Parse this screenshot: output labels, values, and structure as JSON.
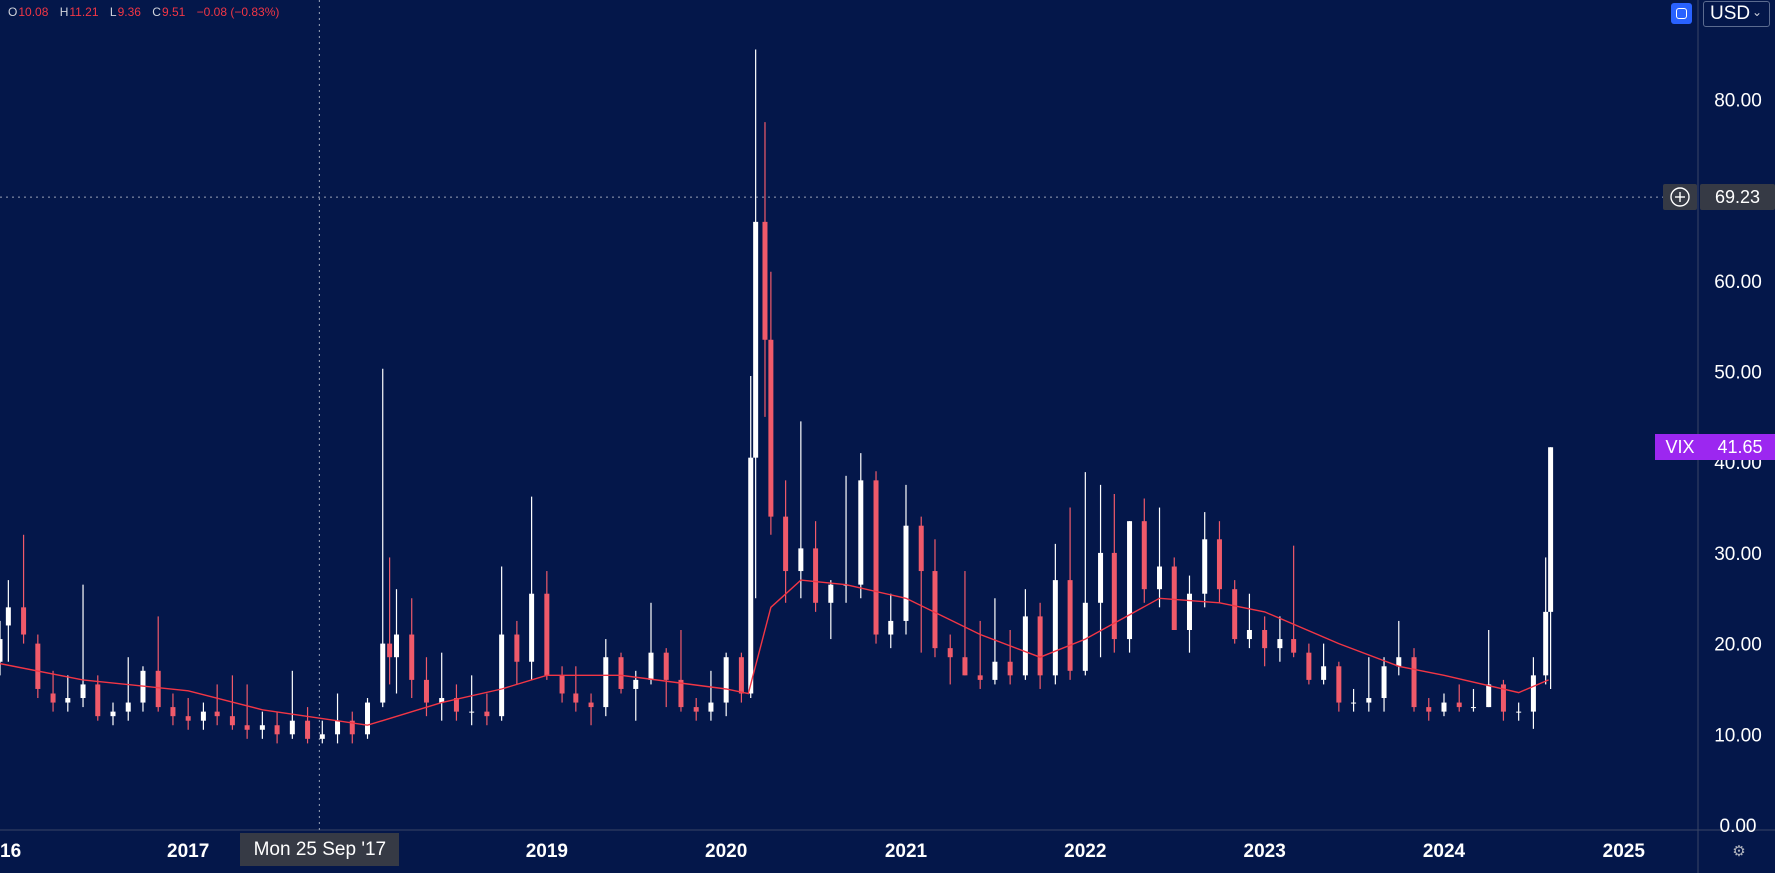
{
  "ohlc": {
    "o_label": "O",
    "o": "10.08",
    "h_label": "H",
    "h": "11.21",
    "l_label": "L",
    "l": "9.36",
    "c_label": "C",
    "c": "9.51",
    "change": "−0.08 (−0.83%)"
  },
  "toolbar": {
    "currency": "USD",
    "currency_chevron": "⌄"
  },
  "crosshair": {
    "price": "69.23",
    "date": "Mon 25 Sep '17"
  },
  "symbol_tag": {
    "name": "VIX",
    "price": "41.65"
  },
  "colors": {
    "background": "#04174a",
    "up": "#ffffff",
    "down": "#f05a6a",
    "ma_line": "#f23645",
    "axis_text": "#ffffff",
    "symbol_tag": "#9c27f0",
    "crosshair_tag": "#363a45",
    "accent_button": "#2962ff"
  },
  "icons": {
    "sync": "sync-square-icon",
    "add": "plus-circle-icon",
    "settings": "gear-icon"
  },
  "chart_data": {
    "type": "candlestick",
    "y_axis": {
      "side": "right",
      "range": [
        0,
        86
      ],
      "ticks": [
        0,
        10,
        20,
        30,
        40,
        50,
        60,
        80
      ],
      "tick_labels": [
        "0.00",
        "10.00",
        "20.00",
        "30.00",
        "40.00",
        "50.00",
        "60.00",
        "80.00"
      ]
    },
    "x_axis": {
      "range": [
        "2015-12-15",
        "2025-06-01"
      ],
      "ticks": [
        "2016-01-01",
        "2017-01-01",
        "2019-01-01",
        "2020-01-01",
        "2021-01-01",
        "2022-01-01",
        "2023-01-01",
        "2024-01-01",
        "2025-01-01"
      ],
      "tick_labels": [
        "16",
        "2017",
        "2019",
        "2020",
        "2021",
        "2022",
        "2023",
        "2024",
        "2025"
      ]
    },
    "crosshair": {
      "x": "2017-09-25",
      "y": 69.23
    },
    "last_value": 41.65,
    "moving_average": {
      "x": [
        "2015-12-15",
        "2016-06-01",
        "2017-01-01",
        "2017-06-01",
        "2018-01-01",
        "2018-06-01",
        "2018-10-01",
        "2019-01-01",
        "2019-06-01",
        "2020-01-01",
        "2020-02-15",
        "2020-04-01",
        "2020-06-01",
        "2020-09-01",
        "2021-01-01",
        "2021-06-01",
        "2021-10-01",
        "2022-01-01",
        "2022-06-01",
        "2022-10-01",
        "2023-01-01",
        "2023-06-01",
        "2023-10-01",
        "2024-01-01",
        "2024-06-01",
        "2024-08-01"
      ],
      "y": [
        17.8,
        16.0,
        14.8,
        12.7,
        11.0,
        13.5,
        15.0,
        16.5,
        16.5,
        15.0,
        14.5,
        24.0,
        27.0,
        26.5,
        25.0,
        21.0,
        18.5,
        20.5,
        25.0,
        24.5,
        23.5,
        20.0,
        17.5,
        16.5,
        14.6,
        16.0
      ]
    },
    "candles": [
      [
        "2015-12-15",
        18.0,
        22.5,
        16.5,
        20.5
      ],
      [
        "2016-01-01",
        22.0,
        27.0,
        18.0,
        24.0
      ],
      [
        "2016-02-01",
        24.0,
        32.0,
        20.0,
        21.0
      ],
      [
        "2016-03-01",
        20.0,
        21.0,
        14.0,
        15.0
      ],
      [
        "2016-04-01",
        14.5,
        17.0,
        12.5,
        13.5
      ],
      [
        "2016-05-01",
        13.5,
        16.5,
        12.5,
        14.0
      ],
      [
        "2016-06-01",
        14.0,
        26.5,
        13.0,
        15.5
      ],
      [
        "2016-07-01",
        15.5,
        16.5,
        11.5,
        12.0
      ],
      [
        "2016-08-01",
        12.0,
        13.5,
        11.0,
        12.5
      ],
      [
        "2016-09-01",
        12.5,
        18.5,
        11.5,
        13.5
      ],
      [
        "2016-10-01",
        13.5,
        17.5,
        12.5,
        17.0
      ],
      [
        "2016-11-01",
        17.0,
        23.0,
        12.5,
        13.0
      ],
      [
        "2016-12-01",
        13.0,
        14.5,
        11.0,
        12.0
      ],
      [
        "2017-01-01",
        12.0,
        14.0,
        10.5,
        11.5
      ],
      [
        "2017-02-01",
        11.5,
        13.5,
        10.5,
        12.5
      ],
      [
        "2017-03-01",
        12.5,
        15.5,
        11.0,
        12.0
      ],
      [
        "2017-04-01",
        12.0,
        16.5,
        10.5,
        11.0
      ],
      [
        "2017-05-01",
        11.0,
        15.5,
        9.5,
        10.5
      ],
      [
        "2017-06-01",
        10.5,
        12.5,
        9.5,
        11.0
      ],
      [
        "2017-07-01",
        11.0,
        12.5,
        9.0,
        10.0
      ],
      [
        "2017-08-01",
        10.0,
        17.0,
        9.5,
        11.5
      ],
      [
        "2017-09-01",
        11.5,
        13.0,
        9.0,
        9.5
      ],
      [
        "2017-10-01",
        9.5,
        11.5,
        9.0,
        10.0
      ],
      [
        "2017-11-01",
        10.0,
        14.5,
        9.0,
        11.5
      ],
      [
        "2017-12-01",
        11.5,
        12.5,
        9.0,
        10.0
      ],
      [
        "2018-01-01",
        10.0,
        14.0,
        9.5,
        13.5
      ],
      [
        "2018-02-01",
        13.5,
        50.3,
        13.0,
        20.0
      ],
      [
        "2018-02-15",
        20.0,
        29.5,
        15.5,
        18.5
      ],
      [
        "2018-03-01",
        18.5,
        26.0,
        14.5,
        21.0
      ],
      [
        "2018-04-01",
        21.0,
        25.0,
        14.0,
        16.0
      ],
      [
        "2018-05-01",
        16.0,
        18.5,
        12.0,
        13.5
      ],
      [
        "2018-06-01",
        13.5,
        19.0,
        11.5,
        14.0
      ],
      [
        "2018-07-01",
        14.0,
        15.5,
        11.5,
        12.5
      ],
      [
        "2018-08-01",
        12.5,
        16.5,
        11.0,
        12.5
      ],
      [
        "2018-09-01",
        12.5,
        14.5,
        11.0,
        12.0
      ],
      [
        "2018-10-01",
        12.0,
        28.5,
        11.5,
        21.0
      ],
      [
        "2018-11-01",
        21.0,
        22.5,
        15.5,
        18.0
      ],
      [
        "2018-12-01",
        18.0,
        36.2,
        16.0,
        25.5
      ],
      [
        "2019-01-01",
        25.5,
        28.0,
        16.0,
        16.5
      ],
      [
        "2019-02-01",
        16.5,
        17.5,
        13.5,
        14.5
      ],
      [
        "2019-03-01",
        14.5,
        17.5,
        12.5,
        13.5
      ],
      [
        "2019-04-01",
        13.5,
        14.5,
        11.0,
        13.0
      ],
      [
        "2019-05-01",
        13.0,
        20.5,
        12.0,
        18.5
      ],
      [
        "2019-06-01",
        18.5,
        19.0,
        14.5,
        15.0
      ],
      [
        "2019-07-01",
        15.0,
        17.0,
        11.5,
        16.0
      ],
      [
        "2019-08-01",
        16.0,
        24.5,
        15.5,
        19.0
      ],
      [
        "2019-09-01",
        19.0,
        19.5,
        13.0,
        16.0
      ],
      [
        "2019-10-01",
        16.0,
        21.5,
        12.5,
        13.0
      ],
      [
        "2019-11-01",
        13.0,
        14.0,
        11.5,
        12.5
      ],
      [
        "2019-12-01",
        12.5,
        17.0,
        11.5,
        13.5
      ],
      [
        "2020-01-01",
        13.5,
        19.0,
        12.0,
        18.5
      ],
      [
        "2020-02-01",
        18.5,
        19.0,
        13.5,
        14.5
      ],
      [
        "2020-02-20",
        14.5,
        49.5,
        14.0,
        40.5
      ],
      [
        "2020-03-01",
        40.5,
        85.5,
        25.0,
        66.5
      ],
      [
        "2020-03-20",
        66.5,
        77.5,
        45.0,
        53.5
      ],
      [
        "2020-04-01",
        53.5,
        61.0,
        32.0,
        34.0
      ],
      [
        "2020-05-01",
        34.0,
        38.0,
        24.5,
        28.0
      ],
      [
        "2020-06-01",
        28.0,
        44.5,
        25.0,
        30.5
      ],
      [
        "2020-07-01",
        30.5,
        33.5,
        23.5,
        24.5
      ],
      [
        "2020-08-01",
        24.5,
        27.0,
        20.5,
        26.5
      ],
      [
        "2020-09-01",
        26.5,
        38.5,
        24.5,
        26.5
      ],
      [
        "2020-10-01",
        26.5,
        41.0,
        25.0,
        38.0
      ],
      [
        "2020-11-01",
        38.0,
        39.0,
        20.0,
        21.0
      ],
      [
        "2020-12-01",
        21.0,
        25.5,
        19.5,
        22.5
      ],
      [
        "2021-01-01",
        22.5,
        37.5,
        21.0,
        33.0
      ],
      [
        "2021-02-01",
        33.0,
        34.0,
        19.0,
        28.0
      ],
      [
        "2021-03-01",
        28.0,
        31.5,
        18.5,
        19.5
      ],
      [
        "2021-04-01",
        19.5,
        21.0,
        15.5,
        18.5
      ],
      [
        "2021-05-01",
        18.5,
        28.0,
        16.5,
        16.5
      ],
      [
        "2021-06-01",
        16.5,
        22.5,
        15.0,
        16.0
      ],
      [
        "2021-07-01",
        16.0,
        25.0,
        15.5,
        18.0
      ],
      [
        "2021-08-01",
        18.0,
        21.5,
        15.5,
        16.5
      ],
      [
        "2021-09-01",
        16.5,
        26.0,
        16.0,
        23.0
      ],
      [
        "2021-10-01",
        23.0,
        24.5,
        15.0,
        16.5
      ],
      [
        "2021-11-01",
        16.5,
        31.0,
        15.5,
        27.0
      ],
      [
        "2021-12-01",
        27.0,
        35.0,
        16.0,
        17.0
      ],
      [
        "2022-01-01",
        17.0,
        38.9,
        16.5,
        24.5
      ],
      [
        "2022-02-01",
        24.5,
        37.5,
        18.5,
        30.0
      ],
      [
        "2022-03-01",
        30.0,
        36.5,
        19.0,
        20.5
      ],
      [
        "2022-04-01",
        20.5,
        33.5,
        19.0,
        33.5
      ],
      [
        "2022-05-01",
        33.5,
        36.0,
        24.5,
        26.0
      ],
      [
        "2022-06-01",
        26.0,
        35.0,
        24.0,
        28.5
      ],
      [
        "2022-07-01",
        28.5,
        29.5,
        21.5,
        21.5
      ],
      [
        "2022-08-01",
        21.5,
        27.5,
        19.0,
        25.5
      ],
      [
        "2022-09-01",
        25.5,
        34.5,
        24.0,
        31.5
      ],
      [
        "2022-10-01",
        31.5,
        33.5,
        24.5,
        26.0
      ],
      [
        "2022-11-01",
        26.0,
        27.0,
        20.0,
        20.5
      ],
      [
        "2022-12-01",
        20.5,
        25.5,
        19.5,
        21.5
      ],
      [
        "2023-01-01",
        21.5,
        23.0,
        17.5,
        19.5
      ],
      [
        "2023-02-01",
        19.5,
        23.0,
        18.0,
        20.5
      ],
      [
        "2023-03-01",
        20.5,
        30.8,
        18.5,
        19.0
      ],
      [
        "2023-04-01",
        19.0,
        20.0,
        15.5,
        16.0
      ],
      [
        "2023-05-01",
        16.0,
        20.0,
        15.5,
        17.5
      ],
      [
        "2023-06-01",
        17.5,
        18.0,
        12.5,
        13.5
      ],
      [
        "2023-07-01",
        13.5,
        15.0,
        12.5,
        13.5
      ],
      [
        "2023-08-01",
        13.5,
        18.5,
        12.5,
        14.0
      ],
      [
        "2023-09-01",
        14.0,
        18.5,
        12.5,
        17.5
      ],
      [
        "2023-10-01",
        17.5,
        22.5,
        16.5,
        18.5
      ],
      [
        "2023-11-01",
        18.5,
        19.5,
        12.5,
        13.0
      ],
      [
        "2023-12-01",
        13.0,
        14.0,
        11.5,
        12.5
      ],
      [
        "2024-01-01",
        12.5,
        14.5,
        12.0,
        13.5
      ],
      [
        "2024-02-01",
        13.5,
        15.5,
        12.5,
        13.0
      ],
      [
        "2024-03-01",
        13.0,
        15.0,
        12.5,
        13.0
      ],
      [
        "2024-04-01",
        13.0,
        21.5,
        13.0,
        15.5
      ],
      [
        "2024-05-01",
        15.5,
        16.0,
        11.5,
        12.5
      ],
      [
        "2024-06-01",
        12.5,
        13.5,
        11.5,
        12.5
      ],
      [
        "2024-07-01",
        12.5,
        18.5,
        10.6,
        16.5
      ],
      [
        "2024-07-26",
        16.5,
        29.5,
        15.5,
        23.5
      ],
      [
        "2024-08-05",
        23.5,
        41.65,
        15.0,
        41.65
      ]
    ]
  }
}
